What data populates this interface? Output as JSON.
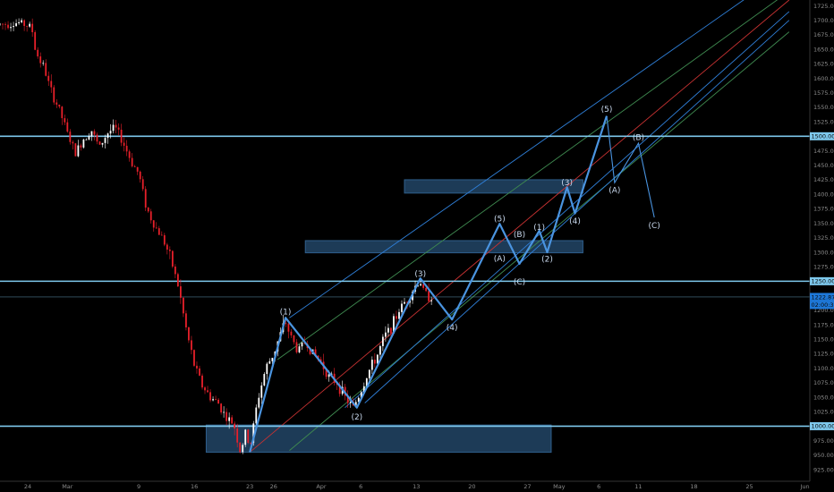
{
  "chart_data": {
    "type": "candlestick",
    "title": "",
    "xlabel": "",
    "ylabel": "",
    "ylim": [
      905,
      1735
    ],
    "grid": false,
    "y_ticks": [
      925,
      950,
      975,
      1000,
      1025,
      1050,
      1075,
      1100,
      1125,
      1150,
      1175,
      1200,
      1225,
      1250,
      1275,
      1300,
      1325,
      1350,
      1375,
      1400,
      1425,
      1450,
      1475,
      1500,
      1525,
      1550,
      1575,
      1600,
      1625,
      1650,
      1675,
      1700,
      1725
    ],
    "x_ticks": [
      {
        "label": "24",
        "day": 0
      },
      {
        "label": "Mar",
        "day": 5
      },
      {
        "label": "9",
        "day": 14
      },
      {
        "label": "16",
        "day": 21
      },
      {
        "label": "23",
        "day": 28
      },
      {
        "label": "26",
        "day": 31
      },
      {
        "label": "Apr",
        "day": 37
      },
      {
        "label": "6",
        "day": 42
      },
      {
        "label": "13",
        "day": 49
      },
      {
        "label": "20",
        "day": 56
      },
      {
        "label": "27",
        "day": 63
      },
      {
        "label": "May",
        "day": 67
      },
      {
        "label": "6",
        "day": 72
      },
      {
        "label": "11",
        "day": 77
      },
      {
        "label": "18",
        "day": 84
      },
      {
        "label": "25",
        "day": 91
      },
      {
        "label": "Jun",
        "day": 98
      }
    ],
    "day_range": [
      -3.5,
      98.5
    ],
    "colors": {
      "up": "#ffffff",
      "down": "#e8202a",
      "wave": "#4a94e0",
      "hline": "#7ec8ec",
      "zone": "#2f5f8c",
      "pitch_blue": "#2f7fd8",
      "pitch_red": "#c83232",
      "pitch_green": "#3f8a50",
      "badge_blue": "#1e78d8",
      "badge_line": "#7ec8ec"
    },
    "horizontal_lines": [
      1500,
      1250,
      1000,
      1222.879
    ],
    "price_badges": [
      {
        "price": 1500,
        "text": "1500.000",
        "style": "line"
      },
      {
        "price": 1250,
        "text": "1250.000",
        "style": "line"
      },
      {
        "price": 1222.879,
        "text": "1222.879",
        "style": "blue"
      },
      {
        "price": 1209,
        "text": "02:00:38",
        "style": "blue"
      },
      {
        "price": 1000,
        "text": "1000.000",
        "style": "line"
      }
    ],
    "zones": [
      {
        "day_from": 22.5,
        "day_to": 66,
        "low": 955,
        "high": 1002
      },
      {
        "day_from": 35,
        "day_to": 70,
        "low": 1299,
        "high": 1320
      },
      {
        "day_from": 47.5,
        "day_to": 70,
        "low": 1402,
        "high": 1425
      }
    ],
    "wave_path": [
      {
        "day": 28,
        "price": 955
      },
      {
        "day": 32.5,
        "price": 1187
      },
      {
        "day": 41.5,
        "price": 1032
      },
      {
        "day": 49.5,
        "price": 1255
      },
      {
        "day": 53.5,
        "price": 1184
      },
      {
        "day": 59.5,
        "price": 1349
      },
      {
        "day": 62,
        "price": 1280
      },
      {
        "day": 64.5,
        "price": 1337
      },
      {
        "day": 65.5,
        "price": 1300
      },
      {
        "day": 68,
        "price": 1412
      },
      {
        "day": 69,
        "price": 1367
      },
      {
        "day": 73,
        "price": 1535
      }
    ],
    "wave_projection": [
      {
        "day": 73,
        "price": 1535
      },
      {
        "day": 74,
        "price": 1420
      },
      {
        "day": 77,
        "price": 1488
      },
      {
        "day": 79,
        "price": 1360
      }
    ],
    "wave_labels": [
      {
        "text": "(1)",
        "day": 32.5,
        "price": 1197
      },
      {
        "text": "(2)",
        "day": 41.5,
        "price": 1016
      },
      {
        "text": "(3)",
        "day": 49.5,
        "price": 1263
      },
      {
        "text": "(4)",
        "day": 53.5,
        "price": 1170
      },
      {
        "text": "(5)",
        "day": 59.5,
        "price": 1358
      },
      {
        "text": "(A)",
        "day": 59.5,
        "price": 1289
      },
      {
        "text": "(B)",
        "day": 62,
        "price": 1331
      },
      {
        "text": "(C)",
        "day": 62,
        "price": 1249
      },
      {
        "text": "(1)",
        "day": 64.5,
        "price": 1343
      },
      {
        "text": "(2)",
        "day": 65.5,
        "price": 1288
      },
      {
        "text": "(3)",
        "day": 68,
        "price": 1420
      },
      {
        "text": "(4)",
        "day": 69,
        "price": 1354
      },
      {
        "text": "(5)",
        "day": 73,
        "price": 1547
      },
      {
        "text": "(A)",
        "day": 74,
        "price": 1407
      },
      {
        "text": "(B)",
        "day": 77,
        "price": 1498
      },
      {
        "text": "(C)",
        "day": 79,
        "price": 1346
      }
    ],
    "pitchfork_lines": [
      {
        "color": "pitch_blue",
        "from": {
          "day": 33,
          "price": 1187
        },
        "to": {
          "day": 96,
          "price": 1790
        }
      },
      {
        "color": "pitch_green",
        "from": {
          "day": 31.5,
          "price": 1115
        },
        "to": {
          "day": 96,
          "price": 1750
        }
      },
      {
        "color": "pitch_red",
        "from": {
          "day": 28,
          "price": 955
        },
        "to": {
          "day": 96,
          "price": 1735
        }
      },
      {
        "color": "pitch_green",
        "from": {
          "day": 33,
          "price": 958
        },
        "to": {
          "day": 96,
          "price": 1680
        }
      },
      {
        "color": "pitch_blue",
        "from": {
          "day": 40,
          "price": 1032
        },
        "to": {
          "day": 96,
          "price": 1715
        }
      },
      {
        "color": "pitch_blue",
        "from": {
          "day": 42.5,
          "price": 1040
        },
        "to": {
          "day": 96,
          "price": 1700
        }
      }
    ],
    "candle_anchors": [
      {
        "day": -3.5,
        "price": 1693
      },
      {
        "day": -1,
        "price": 1696
      },
      {
        "day": 0.5,
        "price": 1688
      },
      {
        "day": 1,
        "price": 1645
      },
      {
        "day": 2,
        "price": 1620
      },
      {
        "day": 3,
        "price": 1575
      },
      {
        "day": 4,
        "price": 1545
      },
      {
        "day": 5,
        "price": 1505
      },
      {
        "day": 6,
        "price": 1470
      },
      {
        "day": 7,
        "price": 1495
      },
      {
        "day": 8,
        "price": 1512
      },
      {
        "day": 9,
        "price": 1480
      },
      {
        "day": 10,
        "price": 1505
      },
      {
        "day": 11,
        "price": 1515
      },
      {
        "day": 12,
        "price": 1490
      },
      {
        "day": 13,
        "price": 1458
      },
      {
        "day": 14,
        "price": 1435
      },
      {
        "day": 15,
        "price": 1375
      },
      {
        "day": 16,
        "price": 1345
      },
      {
        "day": 17,
        "price": 1325
      },
      {
        "day": 18,
        "price": 1290
      },
      {
        "day": 19,
        "price": 1240
      },
      {
        "day": 20,
        "price": 1165
      },
      {
        "day": 21,
        "price": 1105
      },
      {
        "day": 22,
        "price": 1070
      },
      {
        "day": 23,
        "price": 1050
      },
      {
        "day": 24,
        "price": 1040
      },
      {
        "day": 25,
        "price": 1015
      },
      {
        "day": 26,
        "price": 1003
      },
      {
        "day": 26.8,
        "price": 955
      },
      {
        "day": 27.5,
        "price": 990
      },
      {
        "day": 28,
        "price": 963
      },
      {
        "day": 29,
        "price": 1045
      },
      {
        "day": 30,
        "price": 1100
      },
      {
        "day": 31,
        "price": 1125
      },
      {
        "day": 32,
        "price": 1165
      },
      {
        "day": 32.5,
        "price": 1180
      },
      {
        "day": 33,
        "price": 1160
      },
      {
        "day": 34,
        "price": 1130
      },
      {
        "day": 35,
        "price": 1145
      },
      {
        "day": 36,
        "price": 1125
      },
      {
        "day": 37,
        "price": 1110
      },
      {
        "day": 38,
        "price": 1085
      },
      {
        "day": 39,
        "price": 1075
      },
      {
        "day": 40,
        "price": 1050
      },
      {
        "day": 41,
        "price": 1032
      },
      {
        "day": 42,
        "price": 1060
      },
      {
        "day": 43,
        "price": 1095
      },
      {
        "day": 44,
        "price": 1120
      },
      {
        "day": 45,
        "price": 1155
      },
      {
        "day": 46,
        "price": 1175
      },
      {
        "day": 47,
        "price": 1205
      },
      {
        "day": 48,
        "price": 1222
      },
      {
        "day": 49,
        "price": 1245
      },
      {
        "day": 49.5,
        "price": 1250
      },
      {
        "day": 50,
        "price": 1228
      },
      {
        "day": 51,
        "price": 1222
      }
    ]
  }
}
